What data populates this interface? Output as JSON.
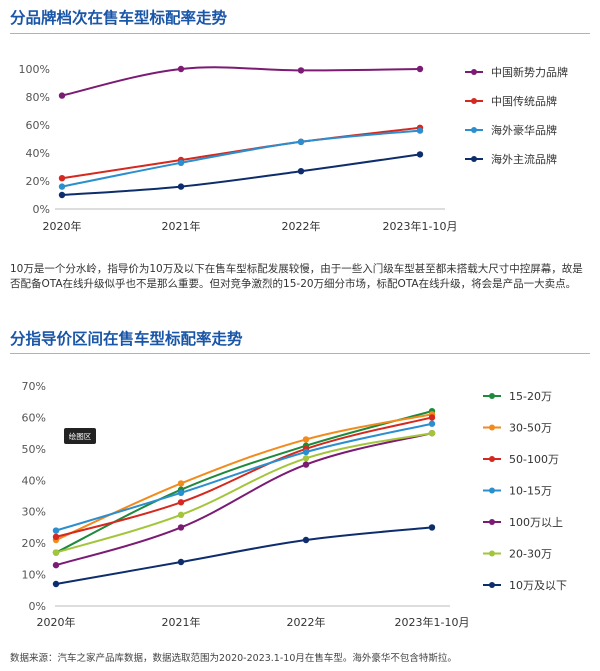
{
  "page": {
    "title1": "分品牌档次在售车型标配率走势",
    "paragraph": "10万是一个分水岭，指导价为10万及以下在售车型标配发展较慢，由于一些入门级车型甚至都未搭载大尺寸中控屏幕，故是否配备OTA在线升级似乎也不是那么重要。但对竞争激烈的15-20万细分市场，标配OTA在线升级，将会是产品一大卖点。",
    "title2": "分指导价区间在售车型标配率走势",
    "source": "数据来源：汽车之家产品库数据，数据选取范围为2020-2023.1-10月在售车型。海外豪华不包含特斯拉。"
  },
  "chart_data": [
    {
      "type": "line",
      "categories": [
        "2020年",
        "2021年",
        "2022年",
        "2023年1-10月"
      ],
      "ylim": [
        0,
        100
      ],
      "yticks": [
        "0%",
        "20%",
        "40%",
        "60%",
        "80%",
        "100%"
      ],
      "grid": false,
      "legend_position": "right",
      "series": [
        {
          "name": "中国新势力品牌",
          "color": "#7b1b74",
          "values": [
            81,
            100,
            99,
            100
          ]
        },
        {
          "name": "中国传统品牌",
          "color": "#d5281e",
          "values": [
            22,
            35,
            48,
            58
          ]
        },
        {
          "name": "海外豪华品牌",
          "color": "#2b8fcf",
          "values": [
            16,
            33,
            48,
            56
          ]
        },
        {
          "name": "海外主流品牌",
          "color": "#0d2d6c",
          "values": [
            10,
            16,
            27,
            39
          ]
        }
      ]
    },
    {
      "type": "line",
      "categories": [
        "2020年",
        "2021年",
        "2022年",
        "2023年1-10月"
      ],
      "ylim": [
        0,
        70
      ],
      "yticks": [
        "0%",
        "10%",
        "20%",
        "30%",
        "40%",
        "50%",
        "60%",
        "70%"
      ],
      "grid": false,
      "legend_position": "right",
      "annotation": "绘图区",
      "series": [
        {
          "name": "15-20万",
          "color": "#1e8a3c",
          "values": [
            17,
            37,
            51,
            62
          ]
        },
        {
          "name": "30-50万",
          "color": "#f28a1c",
          "values": [
            21,
            39,
            53,
            61
          ]
        },
        {
          "name": "50-100万",
          "color": "#d5281e",
          "values": [
            22,
            33,
            50,
            60
          ]
        },
        {
          "name": "10-15万",
          "color": "#2b8fcf",
          "values": [
            24,
            36,
            49,
            58
          ]
        },
        {
          "name": "100万以上",
          "color": "#7b1b74",
          "values": [
            13,
            25,
            45,
            55
          ]
        },
        {
          "name": "20-30万",
          "color": "#a3c53a",
          "values": [
            17,
            29,
            47,
            55
          ]
        },
        {
          "name": "10万及以下",
          "color": "#0d2d6c",
          "values": [
            7,
            14,
            21,
            25
          ]
        }
      ]
    }
  ]
}
